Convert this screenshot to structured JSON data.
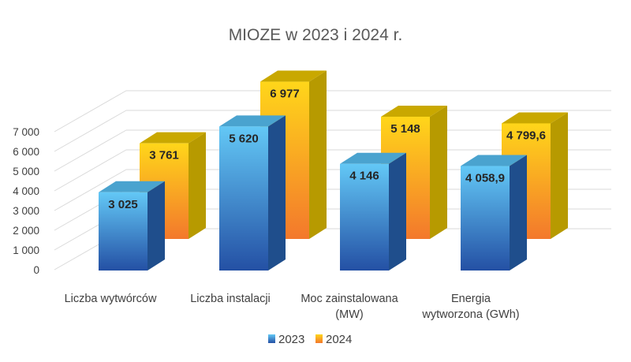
{
  "chart_data": {
    "type": "bar",
    "title": "MIOZE w 2023 i 2024 r.",
    "categories": [
      "Liczba wytwórców",
      "Liczba instalacji",
      "Moc zainstalowana (MW)",
      "Energia wytworzona (GWh)"
    ],
    "category_lines": [
      [
        "Liczba wytwórców"
      ],
      [
        "Liczba instalacji"
      ],
      [
        "Moc zainstalowana",
        "(MW)"
      ],
      [
        "Energia",
        "wytworzona (GWh)"
      ]
    ],
    "series": [
      {
        "name": "2023",
        "values": [
          3025,
          5620,
          4146,
          4058.9
        ],
        "labels": [
          "3 025",
          "5 620",
          "4 146",
          "4 058,9"
        ]
      },
      {
        "name": "2024",
        "values": [
          3761,
          6977,
          5148,
          4799.6
        ],
        "labels": [
          "3 761",
          "6 977",
          "5 148",
          "4 799,6"
        ]
      }
    ],
    "y_ticks": [
      "0",
      "1 000",
      "2 000",
      "3 000",
      "4 000",
      "5 000",
      "6 000",
      "7 000"
    ],
    "ylim": [
      0,
      7000
    ],
    "legend_position": "bottom",
    "style": "3d-column",
    "colors": {
      "s2023_top": "#63c8f6",
      "s2023_bottom": "#2450a4",
      "s2023_side": "#1f4e8c",
      "s2023_cap": "#4aa3cf",
      "s2024_top": "#ffd61a",
      "s2024_bottom": "#f3782c",
      "s2024_side": "#b79a00",
      "s2024_cap": "#c9a800",
      "grid": "#d9d9d9",
      "text": "#404040"
    }
  }
}
